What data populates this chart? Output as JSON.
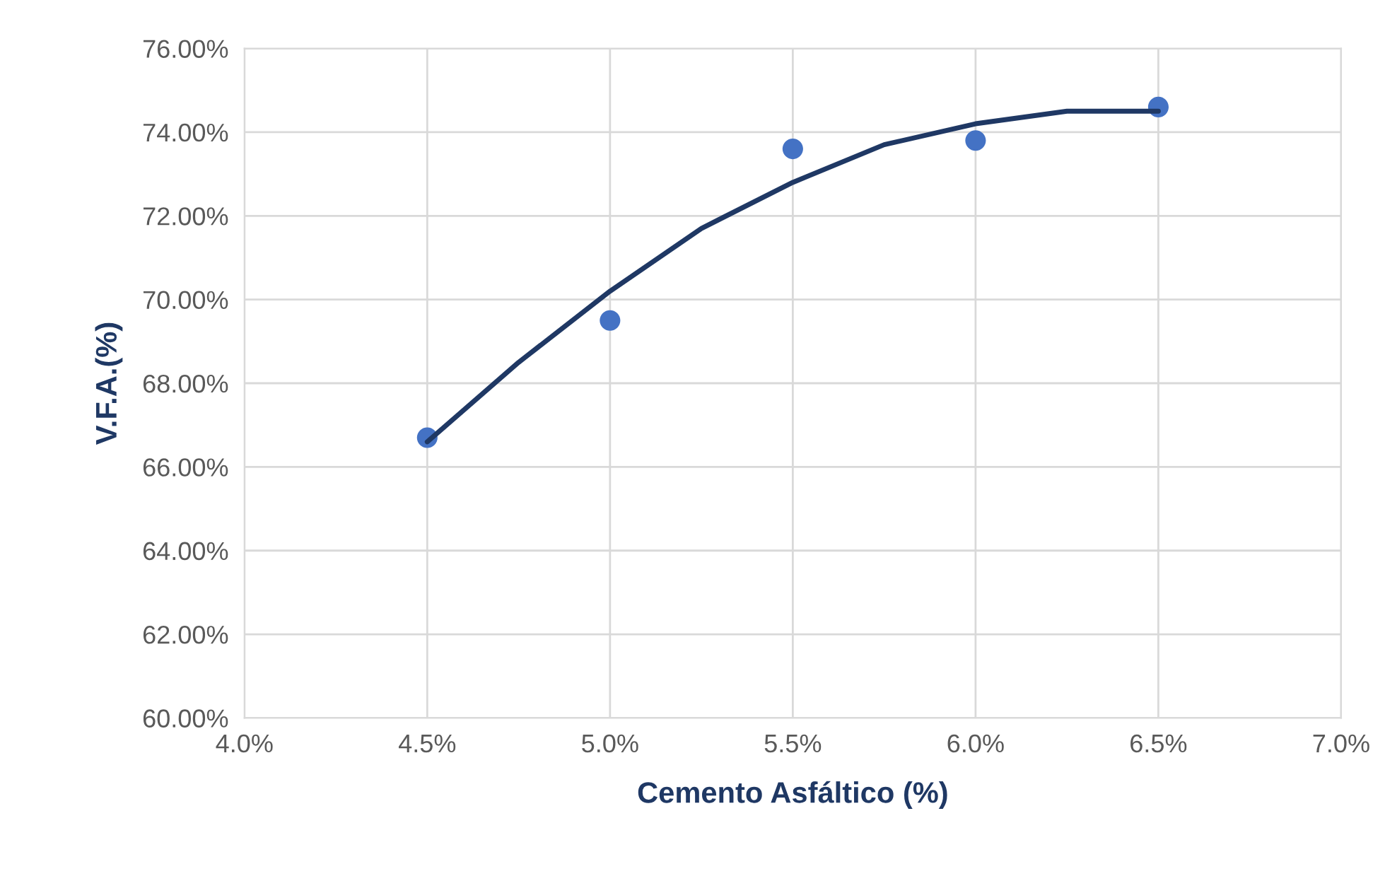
{
  "chart_data": {
    "type": "scatter",
    "xlabel": "Cemento Asfáltico (%)",
    "ylabel": "V.F.A.(%)",
    "series": [
      {
        "color": "#4472c4",
        "x": [
          4.5,
          5.0,
          5.5,
          6.0,
          6.5
        ],
        "values": [
          66.7,
          69.5,
          73.6,
          73.8,
          74.6
        ],
        "marker": "circle"
      },
      {
        "type": "line",
        "color": "#1f3864",
        "x": [
          4.5,
          4.75,
          5.0,
          5.25,
          5.5,
          5.75,
          6.0,
          6.25,
          6.5
        ],
        "values": [
          66.6,
          68.5,
          70.2,
          71.7,
          72.8,
          73.7,
          74.2,
          74.5,
          74.5
        ],
        "marker": "none",
        "line_style": "solid"
      }
    ],
    "xlim": [
      4.0,
      7.0
    ],
    "xticks": [
      {
        "value": 4.0,
        "label": "4.0%"
      },
      {
        "value": 4.5,
        "label": "4.5%"
      },
      {
        "value": 5.0,
        "label": "5.0%"
      },
      {
        "value": 5.5,
        "label": "5.5%"
      },
      {
        "value": 6.0,
        "label": "6.0%"
      },
      {
        "value": 6.5,
        "label": "6.5%"
      },
      {
        "value": 7.0,
        "label": "7.0%"
      }
    ],
    "ylim": [
      60,
      76
    ],
    "yticks": [
      {
        "value": 60,
        "label": "60.00%"
      },
      {
        "value": 62,
        "label": "62.00%"
      },
      {
        "value": 64,
        "label": "64.00%"
      },
      {
        "value": 66,
        "label": "66.00%"
      },
      {
        "value": 68,
        "label": "68.00%"
      },
      {
        "value": 70,
        "label": "70.00%"
      },
      {
        "value": 72,
        "label": "72.00%"
      },
      {
        "value": 74,
        "label": "74.00%"
      },
      {
        "value": 76,
        "label": "76.00%"
      }
    ],
    "grid": true,
    "legend": false
  }
}
